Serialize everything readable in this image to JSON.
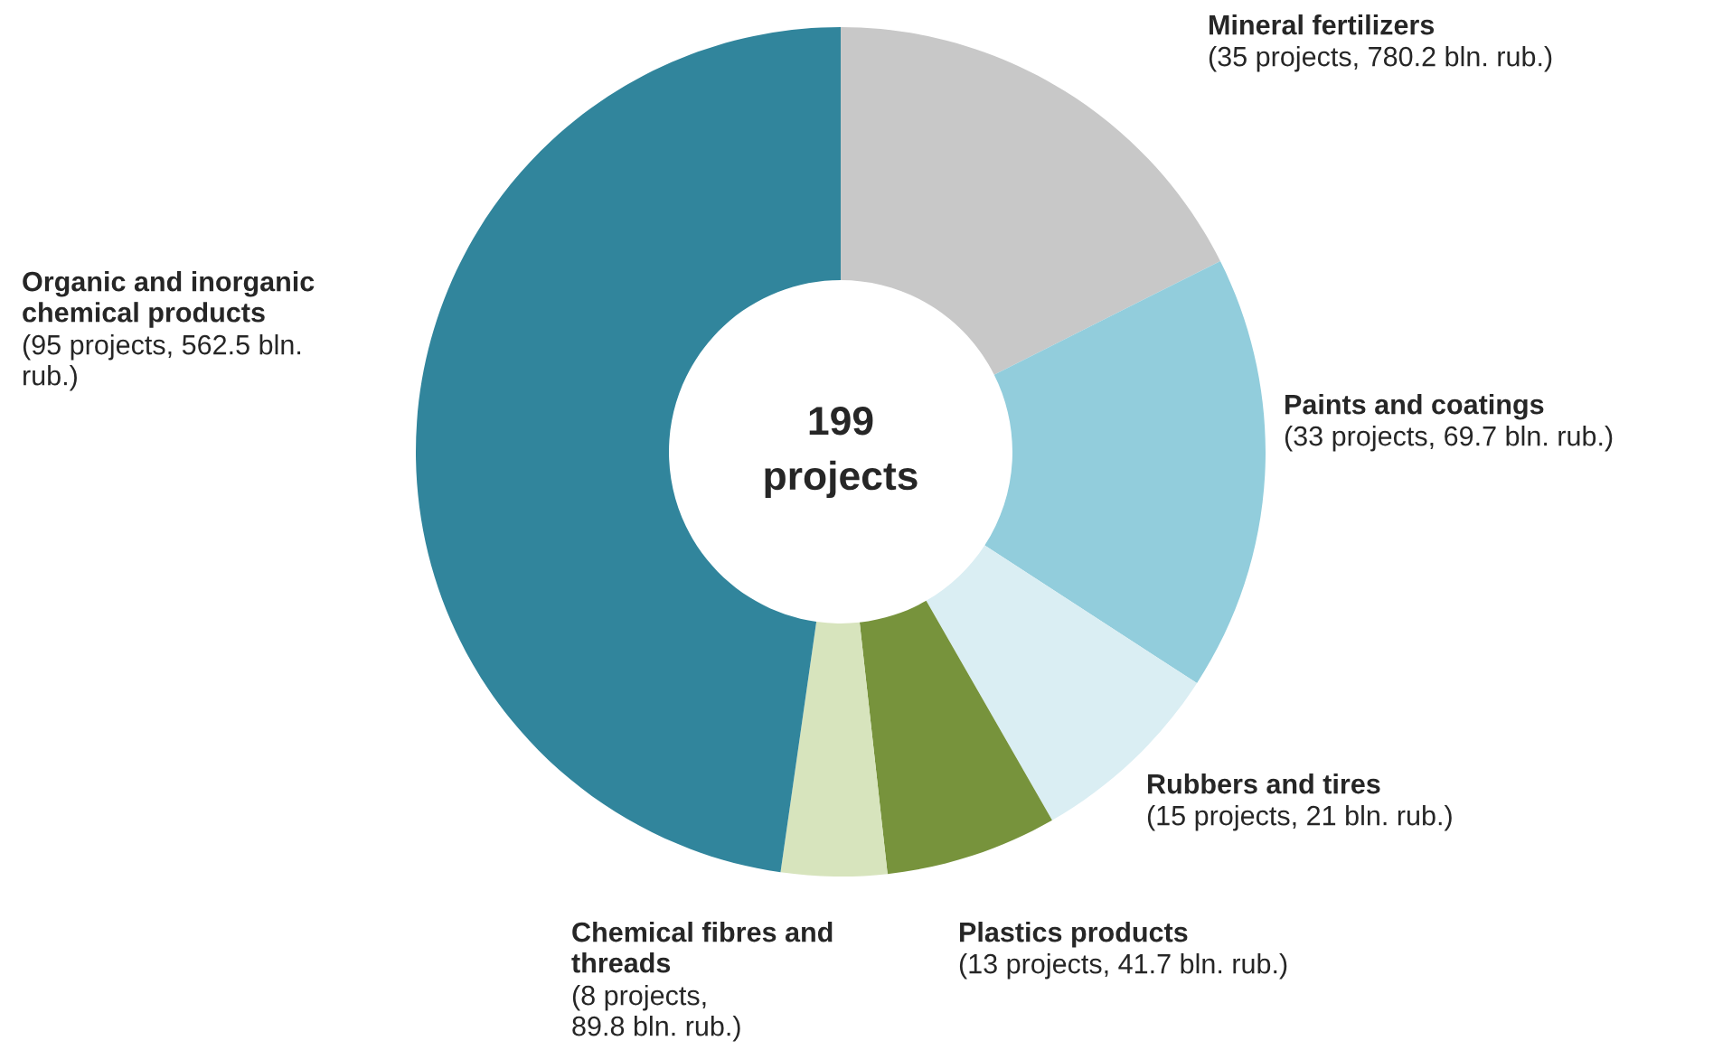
{
  "chart_data": {
    "type": "donut",
    "categories": [
      "Mineral fertilizers",
      "Paints and coatings",
      "Rubbers and tires",
      "Plastics products",
      "Chemical fibres and\nthreads",
      "Organic and inorganic\nchemical products"
    ],
    "values": [
      35,
      33,
      15,
      13,
      8,
      95
    ],
    "value_labels": [
      "(35 projects, 780.2 bln. rub.)",
      "(33 projects, 69.7 bln. rub.)",
      "(15 projects, 21 bln. rub.)",
      "(13 projects, 41.7 bln. rub.)",
      "(8 projects,\n89.8 bln. rub.)",
      "(95 projects, 562.5 bln.\nrub.)"
    ],
    "colors": [
      "#c8c8c8",
      "#92cddc",
      "#daeef3",
      "#77933c",
      "#d7e4bd",
      "#31859c"
    ],
    "annotations": [
      "199\nprojects"
    ]
  }
}
